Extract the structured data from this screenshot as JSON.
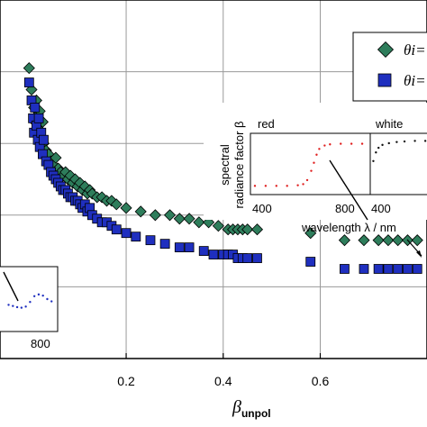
{
  "chart_data": {
    "type": "scatter",
    "xlabel": "β",
    "xlabel_sub": "unpol",
    "xlim": [
      -0.06,
      0.82
    ],
    "ylim": [
      0,
      1
    ],
    "grid": true,
    "x_ticks": [
      "0.2",
      "0.4",
      "0.6"
    ],
    "x_tick_values": [
      0.2,
      0.4,
      0.6
    ],
    "legend": {
      "placement": "top-right",
      "entries": [
        {
          "label": "θi=",
          "marker": "diamond",
          "color": "#2e7d5b"
        },
        {
          "label": "θi=",
          "marker": "square",
          "color": "#1f2fbf"
        }
      ]
    },
    "series": [
      {
        "marker": "diamond",
        "color": "#2e7d5b",
        "points": [
          [
            0.0,
            0.81
          ],
          [
            0.005,
            0.75
          ],
          [
            0.01,
            0.7
          ],
          [
            0.012,
            0.66
          ],
          [
            0.015,
            0.72
          ],
          [
            0.018,
            0.68
          ],
          [
            0.02,
            0.64
          ],
          [
            0.022,
            0.69
          ],
          [
            0.025,
            0.62
          ],
          [
            0.028,
            0.66
          ],
          [
            0.03,
            0.6
          ],
          [
            0.035,
            0.58
          ],
          [
            0.04,
            0.57
          ],
          [
            0.045,
            0.55
          ],
          [
            0.05,
            0.54
          ],
          [
            0.055,
            0.56
          ],
          [
            0.06,
            0.53
          ],
          [
            0.065,
            0.52
          ],
          [
            0.07,
            0.51
          ],
          [
            0.075,
            0.52
          ],
          [
            0.08,
            0.5
          ],
          [
            0.085,
            0.51
          ],
          [
            0.09,
            0.49
          ],
          [
            0.095,
            0.5
          ],
          [
            0.1,
            0.48
          ],
          [
            0.105,
            0.49
          ],
          [
            0.11,
            0.47
          ],
          [
            0.115,
            0.48
          ],
          [
            0.12,
            0.46
          ],
          [
            0.125,
            0.47
          ],
          [
            0.13,
            0.46
          ],
          [
            0.14,
            0.45
          ],
          [
            0.15,
            0.45
          ],
          [
            0.16,
            0.44
          ],
          [
            0.17,
            0.44
          ],
          [
            0.18,
            0.43
          ],
          [
            0.2,
            0.42
          ],
          [
            0.23,
            0.41
          ],
          [
            0.26,
            0.4
          ],
          [
            0.29,
            0.4
          ],
          [
            0.31,
            0.39
          ],
          [
            0.33,
            0.39
          ],
          [
            0.35,
            0.38
          ],
          [
            0.37,
            0.38
          ],
          [
            0.39,
            0.37
          ],
          [
            0.41,
            0.36
          ],
          [
            0.42,
            0.36
          ],
          [
            0.43,
            0.36
          ],
          [
            0.44,
            0.36
          ],
          [
            0.45,
            0.36
          ],
          [
            0.47,
            0.36
          ],
          [
            0.58,
            0.35
          ],
          [
            0.65,
            0.33
          ],
          [
            0.69,
            0.33
          ],
          [
            0.72,
            0.33
          ],
          [
            0.74,
            0.33
          ],
          [
            0.76,
            0.33
          ],
          [
            0.78,
            0.33
          ],
          [
            0.8,
            0.33
          ]
        ]
      },
      {
        "marker": "square",
        "color": "#1f2fbf",
        "points": [
          [
            0.0,
            0.77
          ],
          [
            0.005,
            0.72
          ],
          [
            0.008,
            0.67
          ],
          [
            0.01,
            0.63
          ],
          [
            0.012,
            0.7
          ],
          [
            0.015,
            0.65
          ],
          [
            0.018,
            0.61
          ],
          [
            0.02,
            0.67
          ],
          [
            0.022,
            0.59
          ],
          [
            0.025,
            0.63
          ],
          [
            0.028,
            0.57
          ],
          [
            0.03,
            0.61
          ],
          [
            0.035,
            0.55
          ],
          [
            0.04,
            0.54
          ],
          [
            0.045,
            0.52
          ],
          [
            0.05,
            0.51
          ],
          [
            0.055,
            0.5
          ],
          [
            0.06,
            0.49
          ],
          [
            0.065,
            0.48
          ],
          [
            0.07,
            0.47
          ],
          [
            0.075,
            0.47
          ],
          [
            0.08,
            0.46
          ],
          [
            0.085,
            0.45
          ],
          [
            0.09,
            0.45
          ],
          [
            0.095,
            0.44
          ],
          [
            0.1,
            0.44
          ],
          [
            0.105,
            0.43
          ],
          [
            0.11,
            0.42
          ],
          [
            0.115,
            0.43
          ],
          [
            0.12,
            0.41
          ],
          [
            0.125,
            0.42
          ],
          [
            0.13,
            0.4
          ],
          [
            0.14,
            0.39
          ],
          [
            0.15,
            0.38
          ],
          [
            0.16,
            0.38
          ],
          [
            0.17,
            0.37
          ],
          [
            0.18,
            0.36
          ],
          [
            0.2,
            0.35
          ],
          [
            0.22,
            0.34
          ],
          [
            0.25,
            0.33
          ],
          [
            0.28,
            0.32
          ],
          [
            0.31,
            0.31
          ],
          [
            0.33,
            0.31
          ],
          [
            0.36,
            0.3
          ],
          [
            0.38,
            0.29
          ],
          [
            0.4,
            0.29
          ],
          [
            0.41,
            0.29
          ],
          [
            0.42,
            0.29
          ],
          [
            0.43,
            0.28
          ],
          [
            0.44,
            0.28
          ],
          [
            0.45,
            0.28
          ],
          [
            0.47,
            0.28
          ],
          [
            0.58,
            0.27
          ],
          [
            0.65,
            0.25
          ],
          [
            0.69,
            0.25
          ],
          [
            0.72,
            0.25
          ],
          [
            0.74,
            0.25
          ],
          [
            0.76,
            0.25
          ],
          [
            0.78,
            0.25
          ],
          [
            0.8,
            0.25
          ]
        ]
      }
    ],
    "annotations": [
      {
        "text": "wavelength λ / nm",
        "type": "arrow-label"
      }
    ],
    "insets": [
      {
        "name": "main-inset",
        "ylabel_line1": "spectral",
        "ylabel_line2": "radiance factor β",
        "xlabel": "wavelength λ / nm",
        "panels": [
          {
            "label": "red",
            "color": "#e02020",
            "tick": "400",
            "tick_value": 400,
            "tick2": "800",
            "tick2_value": 800,
            "curve": [
              [
                380,
                0.12
              ],
              [
                420,
                0.12
              ],
              [
                460,
                0.12
              ],
              [
                500,
                0.12
              ],
              [
                540,
                0.13
              ],
              [
                560,
                0.15
              ],
              [
                575,
                0.22
              ],
              [
                590,
                0.38
              ],
              [
                600,
                0.52
              ],
              [
                610,
                0.66
              ],
              [
                620,
                0.76
              ],
              [
                640,
                0.82
              ],
              [
                660,
                0.84
              ],
              [
                700,
                0.85
              ],
              [
                740,
                0.85
              ],
              [
                780,
                0.85
              ]
            ]
          },
          {
            "label": "white",
            "color": "#111111",
            "tick": "400",
            "tick_value": 400,
            "curve": [
              [
                380,
                0.55
              ],
              [
                400,
                0.7
              ],
              [
                420,
                0.78
              ],
              [
                450,
                0.83
              ],
              [
                500,
                0.86
              ],
              [
                560,
                0.88
              ],
              [
                620,
                0.89
              ],
              [
                700,
                0.9
              ],
              [
                780,
                0.9
              ]
            ]
          }
        ]
      },
      {
        "name": "left-inset",
        "tick": "800",
        "tick_value": 800,
        "color": "#1f2fbf",
        "curve": [
          [
            640,
            0.4
          ],
          [
            660,
            0.38
          ],
          [
            680,
            0.36
          ],
          [
            700,
            0.35
          ],
          [
            720,
            0.37
          ],
          [
            740,
            0.45
          ],
          [
            760,
            0.55
          ],
          [
            780,
            0.58
          ],
          [
            800,
            0.56
          ],
          [
            820,
            0.5
          ],
          [
            840,
            0.46
          ]
        ]
      }
    ]
  }
}
